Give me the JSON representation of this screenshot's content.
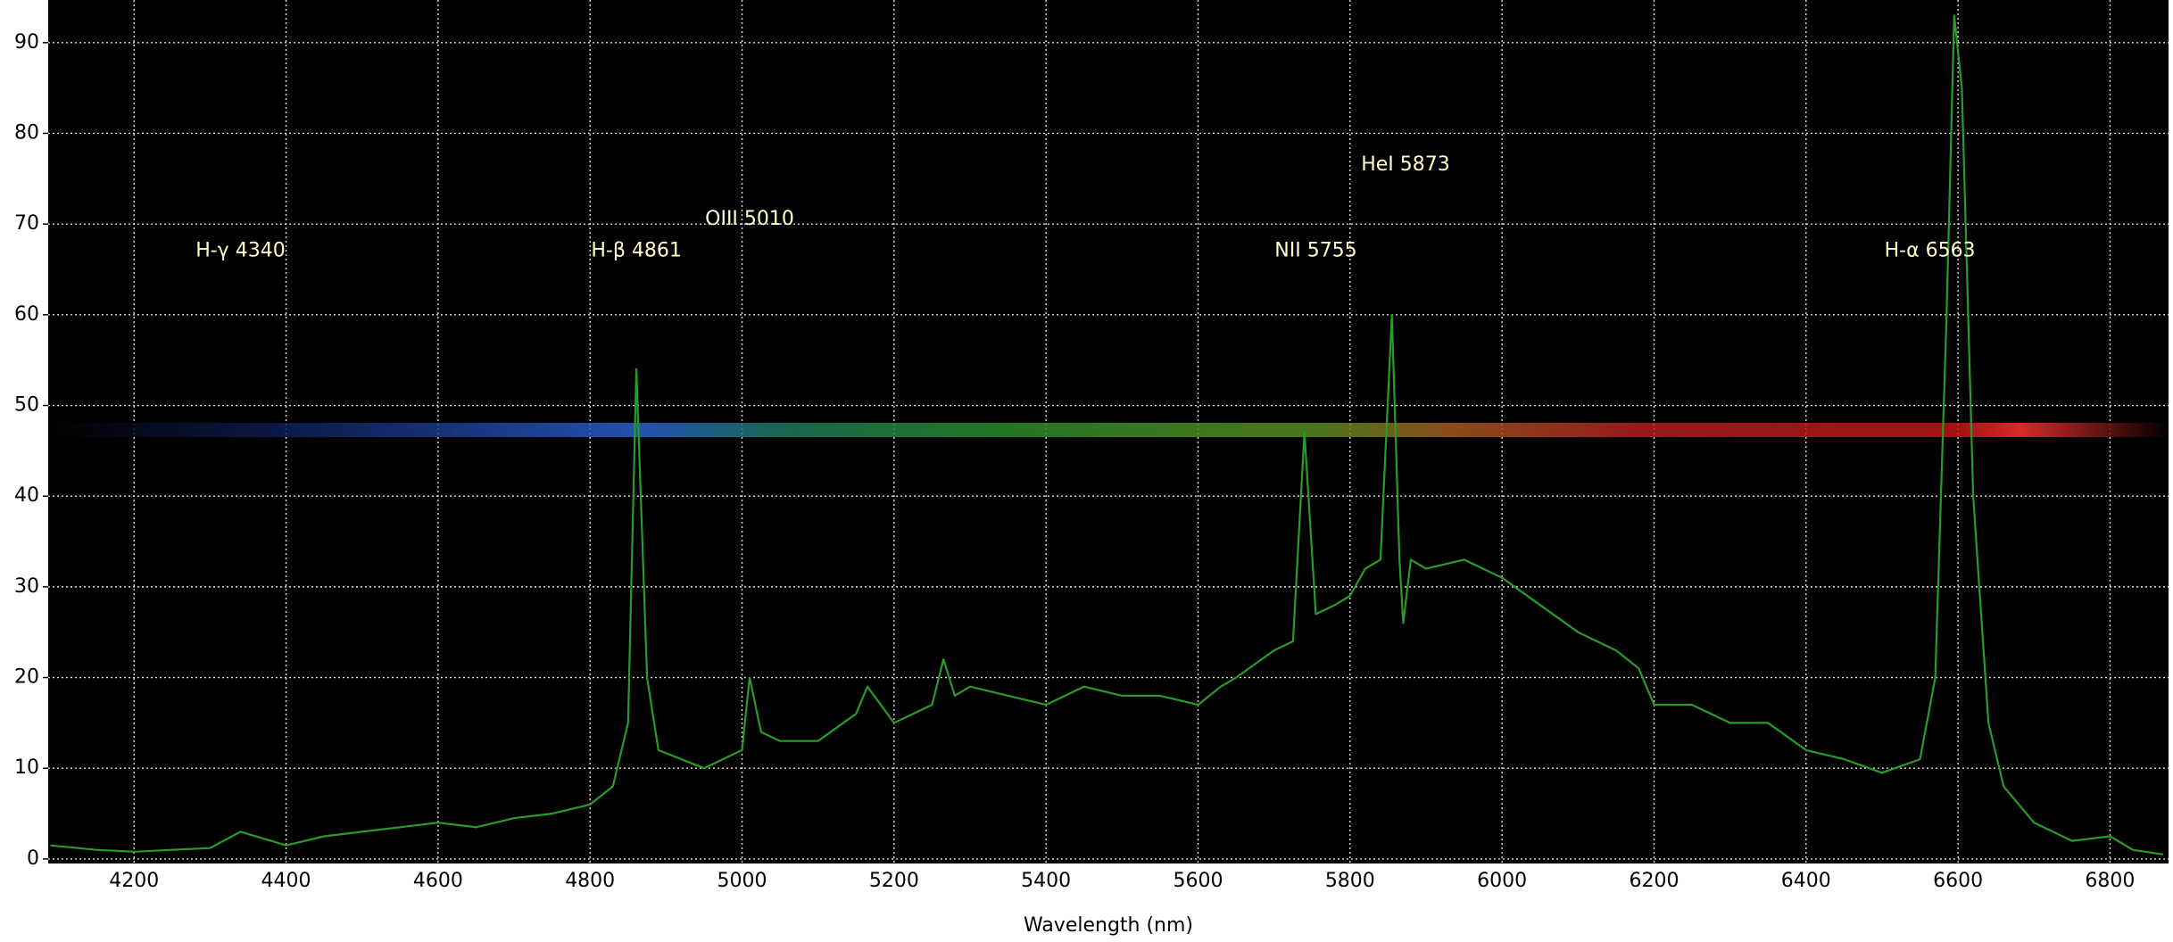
{
  "chart_data": {
    "type": "line",
    "x_label": "Wavelength (nm)",
    "xlim": [
      4087,
      6877
    ],
    "ylim": [
      -0.5,
      94.7
    ],
    "xticks": [
      4200,
      4400,
      4600,
      4800,
      5000,
      5200,
      5400,
      5600,
      5800,
      6000,
      6200,
      6400,
      6600,
      6800
    ],
    "yticks": [
      0,
      10,
      20,
      30,
      40,
      50,
      60,
      70,
      80,
      90
    ],
    "grid": true,
    "annotations": [
      "H-γ 4340",
      "H-β 4861",
      "OIII 5010",
      "NII 5755",
      "HeI 5873",
      "H-α 6563"
    ],
    "series": [
      {
        "color": "#2a9a2a",
        "x": [
          4090,
          4150,
          4200,
          4250,
          4300,
          4340,
          4380,
          4400,
          4450,
          4500,
          4550,
          4600,
          4650,
          4700,
          4750,
          4800,
          4830,
          4850,
          4861,
          4875,
          4890,
          4920,
          4950,
          5000,
          5010,
          5025,
          5050,
          5100,
          5150,
          5165,
          5200,
          5250,
          5265,
          5280,
          5300,
          5350,
          5400,
          5450,
          5500,
          5550,
          5600,
          5630,
          5650,
          5700,
          5725,
          5740,
          5755,
          5780,
          5800,
          5820,
          5840,
          5855,
          5865,
          5870,
          5880,
          5900,
          5950,
          6000,
          6050,
          6100,
          6150,
          6180,
          6200,
          6250,
          6300,
          6350,
          6400,
          6450,
          6500,
          6550,
          6570,
          6585,
          6595,
          6605,
          6620,
          6640,
          6660,
          6700,
          6750,
          6800,
          6830,
          6870
        ],
        "values": [
          1.5,
          1,
          0.8,
          1,
          1.2,
          3,
          2,
          1.5,
          2.5,
          3,
          3.5,
          4,
          3.5,
          4.5,
          5,
          6,
          8,
          15,
          54,
          20,
          12,
          11,
          10,
          12,
          20,
          14,
          13,
          13,
          16,
          19,
          15,
          17,
          22,
          18,
          19,
          18,
          17,
          19,
          18,
          18,
          17,
          19,
          20,
          23,
          24,
          47,
          27,
          28,
          29,
          32,
          33,
          60,
          33,
          26,
          33,
          32,
          33,
          31,
          28,
          25,
          23,
          21,
          17,
          17,
          15,
          15,
          12,
          11,
          9.5,
          11,
          20,
          60,
          93,
          85,
          40,
          15,
          8,
          4,
          2,
          2.5,
          1,
          0.5
        ]
      }
    ]
  }
}
